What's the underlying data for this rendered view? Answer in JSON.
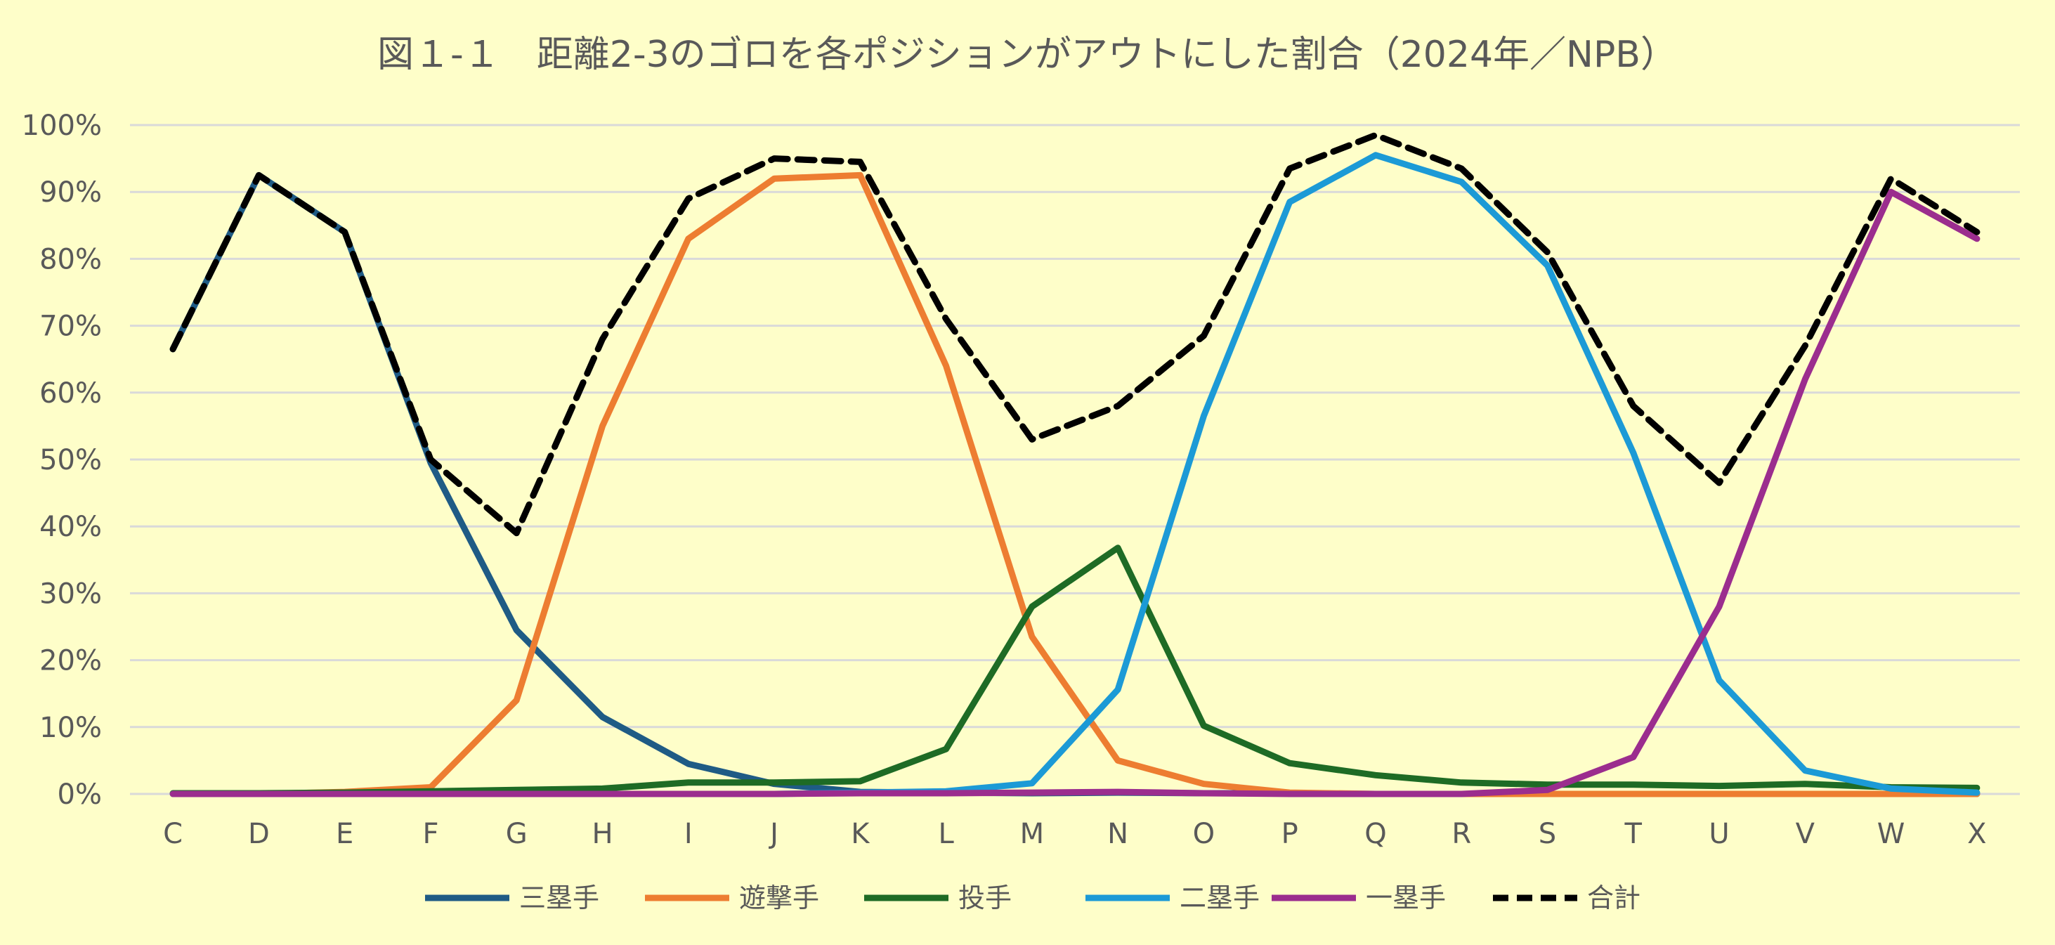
{
  "chart_data": {
    "type": "line",
    "title": "図１-１　距離2-3のゴロを各ポジションがアウトにした割合（2024年／NPB）",
    "xlabel": "",
    "ylabel": "",
    "ylim": [
      0,
      1
    ],
    "y_ticks": [
      "0%",
      "10%",
      "20%",
      "30%",
      "40%",
      "50%",
      "60%",
      "70%",
      "80%",
      "90%",
      "100%"
    ],
    "grid": true,
    "legend_position": "bottom",
    "categories": [
      "C",
      "D",
      "E",
      "F",
      "G",
      "H",
      "I",
      "J",
      "K",
      "L",
      "M",
      "N",
      "O",
      "P",
      "Q",
      "R",
      "S",
      "T",
      "U",
      "V",
      "W",
      "X"
    ],
    "series": [
      {
        "name": "三塁手",
        "color": "#1f5b85",
        "dash": false,
        "values": [
          0.665,
          0.925,
          0.84,
          0.495,
          0.245,
          0.115,
          0.045,
          0.015,
          0.003,
          0.002,
          0.001,
          0.002,
          0.001,
          0.001,
          0.0,
          0.0,
          0.0,
          0.0,
          0.0,
          0.0,
          0.0,
          0.0
        ]
      },
      {
        "name": "遊撃手",
        "color": "#ed7d31",
        "dash": false,
        "values": [
          0.0,
          0.0,
          0.003,
          0.01,
          0.14,
          0.55,
          0.83,
          0.92,
          0.925,
          0.64,
          0.235,
          0.05,
          0.015,
          0.002,
          0.0,
          0.0,
          0.0,
          0.0,
          0.0,
          0.0,
          0.0,
          0.0
        ]
      },
      {
        "name": "投手",
        "color": "#1e6b25",
        "dash": false,
        "values": [
          0.001,
          0.001,
          0.002,
          0.004,
          0.006,
          0.008,
          0.017,
          0.017,
          0.019,
          0.067,
          0.28,
          0.368,
          0.102,
          0.046,
          0.028,
          0.017,
          0.014,
          0.014,
          0.012,
          0.015,
          0.01,
          0.009
        ]
      },
      {
        "name": "二塁手",
        "color": "#1c9ad6",
        "dash": false,
        "values": [
          0.0,
          0.0,
          0.0,
          0.0,
          0.0,
          0.0,
          0.0,
          0.0,
          0.002,
          0.004,
          0.016,
          0.156,
          0.565,
          0.885,
          0.955,
          0.915,
          0.79,
          0.51,
          0.17,
          0.035,
          0.008,
          0.002
        ]
      },
      {
        "name": "一塁手",
        "color": "#9b2d8e",
        "dash": false,
        "values": [
          0.0,
          0.0,
          0.0,
          0.0,
          0.0,
          0.0,
          0.0,
          0.0,
          0.001,
          0.001,
          0.002,
          0.003,
          0.001,
          0.0,
          0.0,
          0.0,
          0.006,
          0.055,
          0.28,
          0.62,
          0.9,
          0.83
        ]
      },
      {
        "name": "合計",
        "color": "#000000",
        "dash": true,
        "values": [
          0.665,
          0.925,
          0.84,
          0.5,
          0.39,
          0.68,
          0.89,
          0.95,
          0.945,
          0.71,
          0.53,
          0.58,
          0.685,
          0.935,
          0.985,
          0.935,
          0.81,
          0.58,
          0.465,
          0.67,
          0.92,
          0.84
        ]
      }
    ]
  }
}
